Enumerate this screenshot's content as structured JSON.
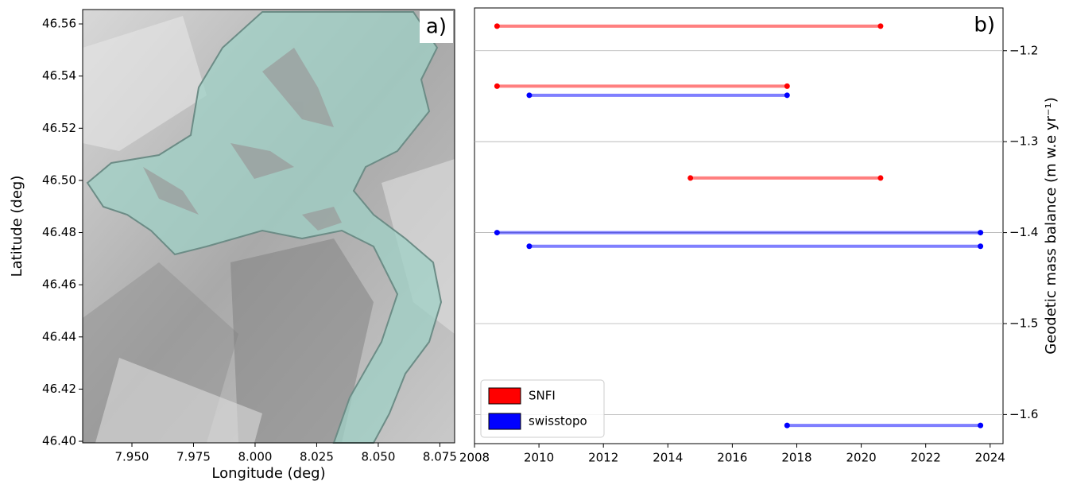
{
  "chart_data": [
    {
      "type": "map",
      "panel_label": "a)",
      "x_label": "Longitude (deg)",
      "y_label": "Latitude (deg)",
      "xlim": [
        7.93,
        8.081
      ],
      "ylim": [
        46.3994,
        46.5655
      ],
      "xticks": [
        {
          "value": 7.95,
          "label": "7.950"
        },
        7.975,
        {
          "value": 8.0,
          "label": "8.000"
        },
        8.025,
        {
          "value": 8.05,
          "label": "8.050"
        },
        8.075
      ],
      "yticks": [
        {
          "value": 46.4,
          "label": "46.40"
        },
        46.42,
        46.44,
        46.46,
        46.48,
        {
          "value": 46.5,
          "label": "46.50"
        },
        46.52,
        46.54,
        46.56
      ]
    },
    {
      "type": "segment",
      "panel_label": "b)",
      "y_label": "Geodetic mass balance (m w.e yr⁻¹)",
      "xlim": [
        2008,
        2024.4
      ],
      "ylim": [
        -1.632,
        -1.153
      ],
      "xticks": [
        2008,
        2010,
        2012,
        2014,
        2016,
        2018,
        2020,
        2022,
        2024
      ],
      "yticks": [
        {
          "value": -1.2,
          "label": "−1.2"
        },
        {
          "value": -1.3,
          "label": "−1.3"
        },
        {
          "value": -1.4,
          "label": "−1.4"
        },
        {
          "value": -1.5,
          "label": "−1.5"
        },
        {
          "value": -1.6,
          "label": "−1.6"
        }
      ],
      "grid": true,
      "legend": "lower left",
      "series": [
        {
          "name": "SNFI",
          "color": "#ff0000",
          "x_start": [
            2008.7,
            2008.7,
            2014.7
          ],
          "x_end": [
            2020.6,
            2017.7,
            2020.6
          ],
          "values": [
            -1.173,
            -1.239,
            -1.34
          ]
        },
        {
          "name": "swisstopo",
          "color": "#0000ff",
          "x_start": [
            2009.7,
            2008.7,
            2009.7,
            2017.7
          ],
          "x_end": [
            2017.7,
            2023.7,
            2023.7,
            2023.7
          ],
          "values": [
            -1.249,
            -1.4,
            -1.415,
            -1.612
          ]
        }
      ]
    }
  ]
}
